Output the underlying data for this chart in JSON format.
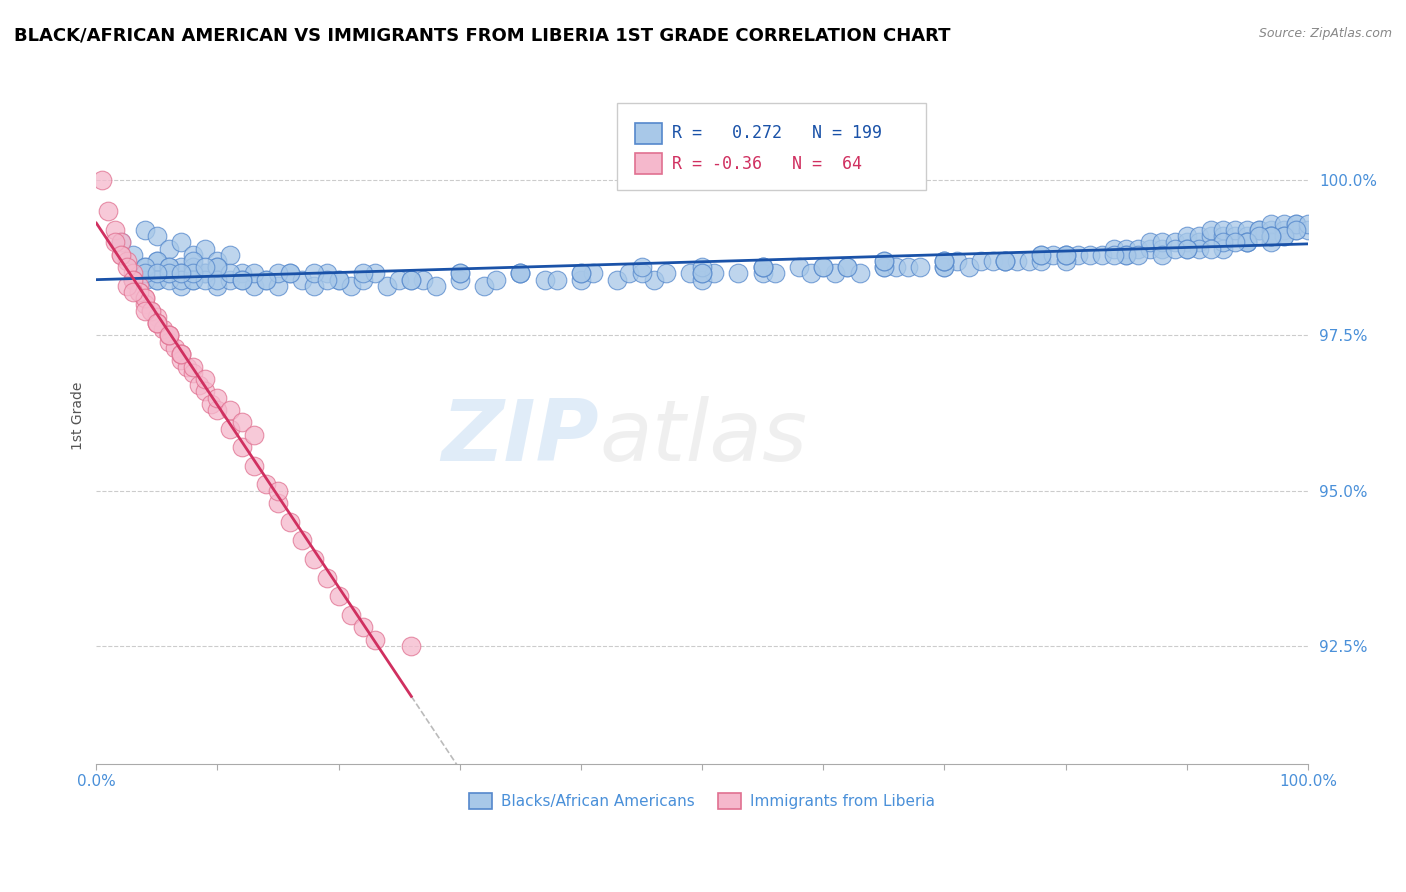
{
  "title": "BLACK/AFRICAN AMERICAN VS IMMIGRANTS FROM LIBERIA 1ST GRADE CORRELATION CHART",
  "source_text": "Source: ZipAtlas.com",
  "ylabel": "1st Grade",
  "y_tick_labels": [
    "92.5%",
    "95.0%",
    "97.5%",
    "100.0%"
  ],
  "y_tick_values": [
    0.925,
    0.95,
    0.975,
    1.0
  ],
  "x_lim": [
    0.0,
    1.0
  ],
  "y_lim": [
    0.906,
    1.018
  ],
  "blue_R": 0.272,
  "blue_N": 199,
  "pink_R": -0.36,
  "pink_N": 64,
  "blue_color": "#a8c8e8",
  "blue_edge_color": "#5588cc",
  "blue_line_color": "#1a52a8",
  "pink_color": "#f5b8cc",
  "pink_edge_color": "#e07090",
  "pink_line_color": "#d03060",
  "grid_color": "#cccccc",
  "watermark_zip_color": "#5599dd",
  "watermark_atlas_color": "#aaaaaa",
  "legend_blue_label": "Blacks/African Americans",
  "legend_pink_label": "Immigrants from Liberia",
  "title_fontsize": 13,
  "tick_label_color": "#4a90d9",
  "scatter_size": 180,
  "blue_scatter_x": [
    0.02,
    0.03,
    0.04,
    0.04,
    0.05,
    0.05,
    0.05,
    0.06,
    0.06,
    0.07,
    0.07,
    0.07,
    0.08,
    0.08,
    0.09,
    0.09,
    0.1,
    0.1,
    0.11,
    0.11,
    0.12,
    0.13,
    0.14,
    0.15,
    0.16,
    0.17,
    0.18,
    0.19,
    0.2,
    0.21,
    0.22,
    0.24,
    0.25,
    0.27,
    0.28,
    0.3,
    0.32,
    0.33,
    0.35,
    0.37,
    0.38,
    0.4,
    0.41,
    0.43,
    0.44,
    0.46,
    0.47,
    0.49,
    0.5,
    0.51,
    0.53,
    0.55,
    0.56,
    0.58,
    0.59,
    0.61,
    0.62,
    0.63,
    0.65,
    0.66,
    0.67,
    0.68,
    0.7,
    0.71,
    0.72,
    0.73,
    0.74,
    0.75,
    0.76,
    0.77,
    0.78,
    0.78,
    0.79,
    0.8,
    0.81,
    0.82,
    0.83,
    0.84,
    0.85,
    0.86,
    0.87,
    0.87,
    0.88,
    0.88,
    0.89,
    0.9,
    0.9,
    0.91,
    0.91,
    0.92,
    0.92,
    0.93,
    0.93,
    0.94,
    0.94,
    0.95,
    0.95,
    0.96,
    0.96,
    0.97,
    0.97,
    0.97,
    0.98,
    0.98,
    0.98,
    0.99,
    0.99,
    0.99,
    1.0,
    1.0,
    0.05,
    0.06,
    0.07,
    0.08,
    0.09,
    0.1,
    0.13,
    0.15,
    0.18,
    0.2,
    0.23,
    0.26,
    0.3,
    0.35,
    0.4,
    0.45,
    0.5,
    0.55,
    0.6,
    0.65,
    0.7,
    0.75,
    0.8,
    0.85,
    0.88,
    0.91,
    0.93,
    0.95,
    0.97,
    0.98,
    0.03,
    0.04,
    0.05,
    0.06,
    0.07,
    0.08,
    0.09,
    0.1,
    0.11,
    0.12,
    0.14,
    0.16,
    0.19,
    0.22,
    0.26,
    0.3,
    0.35,
    0.4,
    0.45,
    0.5,
    0.55,
    0.6,
    0.65,
    0.7,
    0.75,
    0.8,
    0.85,
    0.9,
    0.93,
    0.95,
    0.04,
    0.06,
    0.08,
    0.1,
    0.55,
    0.62,
    0.7,
    0.78,
    0.84,
    0.89,
    0.92,
    0.95,
    0.97,
    0.99,
    0.04,
    0.06,
    0.08,
    0.65,
    0.8,
    0.9,
    0.94,
    0.97,
    0.05,
    0.07,
    0.09,
    0.12,
    0.5,
    0.7,
    0.86,
    0.96
  ],
  "blue_scatter_y": [
    0.99,
    0.988,
    0.986,
    0.992,
    0.984,
    0.987,
    0.991,
    0.985,
    0.989,
    0.983,
    0.986,
    0.99,
    0.984,
    0.988,
    0.985,
    0.989,
    0.983,
    0.987,
    0.984,
    0.988,
    0.985,
    0.983,
    0.984,
    0.983,
    0.985,
    0.984,
    0.983,
    0.985,
    0.984,
    0.983,
    0.984,
    0.983,
    0.984,
    0.984,
    0.983,
    0.984,
    0.983,
    0.984,
    0.985,
    0.984,
    0.984,
    0.984,
    0.985,
    0.984,
    0.985,
    0.984,
    0.985,
    0.985,
    0.984,
    0.985,
    0.985,
    0.985,
    0.985,
    0.986,
    0.985,
    0.985,
    0.986,
    0.985,
    0.986,
    0.986,
    0.986,
    0.986,
    0.986,
    0.987,
    0.986,
    0.987,
    0.987,
    0.987,
    0.987,
    0.987,
    0.987,
    0.988,
    0.988,
    0.988,
    0.988,
    0.988,
    0.988,
    0.989,
    0.989,
    0.989,
    0.989,
    0.99,
    0.989,
    0.99,
    0.99,
    0.99,
    0.991,
    0.99,
    0.991,
    0.991,
    0.992,
    0.991,
    0.992,
    0.991,
    0.992,
    0.991,
    0.992,
    0.992,
    0.992,
    0.992,
    0.993,
    0.991,
    0.992,
    0.993,
    0.991,
    0.993,
    0.992,
    0.993,
    0.992,
    0.993,
    0.987,
    0.986,
    0.985,
    0.986,
    0.985,
    0.986,
    0.985,
    0.985,
    0.985,
    0.984,
    0.985,
    0.984,
    0.985,
    0.985,
    0.985,
    0.985,
    0.985,
    0.986,
    0.986,
    0.986,
    0.986,
    0.987,
    0.987,
    0.988,
    0.988,
    0.989,
    0.989,
    0.99,
    0.99,
    0.991,
    0.984,
    0.984,
    0.984,
    0.984,
    0.984,
    0.984,
    0.984,
    0.984,
    0.985,
    0.984,
    0.984,
    0.985,
    0.984,
    0.985,
    0.984,
    0.985,
    0.985,
    0.985,
    0.986,
    0.986,
    0.986,
    0.986,
    0.987,
    0.987,
    0.987,
    0.988,
    0.988,
    0.989,
    0.99,
    0.99,
    0.986,
    0.986,
    0.987,
    0.986,
    0.986,
    0.986,
    0.987,
    0.988,
    0.988,
    0.989,
    0.989,
    0.99,
    0.991,
    0.992,
    0.985,
    0.985,
    0.985,
    0.987,
    0.988,
    0.989,
    0.99,
    0.991,
    0.985,
    0.985,
    0.986,
    0.984,
    0.985,
    0.987,
    0.988,
    0.991
  ],
  "pink_scatter_x": [
    0.005,
    0.01,
    0.015,
    0.02,
    0.02,
    0.025,
    0.03,
    0.03,
    0.035,
    0.035,
    0.04,
    0.04,
    0.045,
    0.05,
    0.05,
    0.055,
    0.06,
    0.06,
    0.065,
    0.07,
    0.07,
    0.075,
    0.08,
    0.085,
    0.09,
    0.095,
    0.1,
    0.11,
    0.12,
    0.13,
    0.14,
    0.15,
    0.16,
    0.17,
    0.18,
    0.19,
    0.2,
    0.21,
    0.22,
    0.23,
    0.015,
    0.02,
    0.025,
    0.03,
    0.035,
    0.04,
    0.045,
    0.05,
    0.06,
    0.07,
    0.08,
    0.09,
    0.1,
    0.11,
    0.12,
    0.13,
    0.025,
    0.03,
    0.04,
    0.05,
    0.06,
    0.07,
    0.15,
    0.26
  ],
  "pink_scatter_y": [
    1.0,
    0.995,
    0.992,
    0.99,
    0.988,
    0.987,
    0.985,
    0.984,
    0.983,
    0.982,
    0.981,
    0.98,
    0.979,
    0.978,
    0.977,
    0.976,
    0.975,
    0.974,
    0.973,
    0.972,
    0.971,
    0.97,
    0.969,
    0.967,
    0.966,
    0.964,
    0.963,
    0.96,
    0.957,
    0.954,
    0.951,
    0.948,
    0.945,
    0.942,
    0.939,
    0.936,
    0.933,
    0.93,
    0.928,
    0.926,
    0.99,
    0.988,
    0.986,
    0.984,
    0.982,
    0.981,
    0.979,
    0.977,
    0.975,
    0.972,
    0.97,
    0.968,
    0.965,
    0.963,
    0.961,
    0.959,
    0.983,
    0.982,
    0.979,
    0.977,
    0.975,
    0.972,
    0.95,
    0.925
  ]
}
